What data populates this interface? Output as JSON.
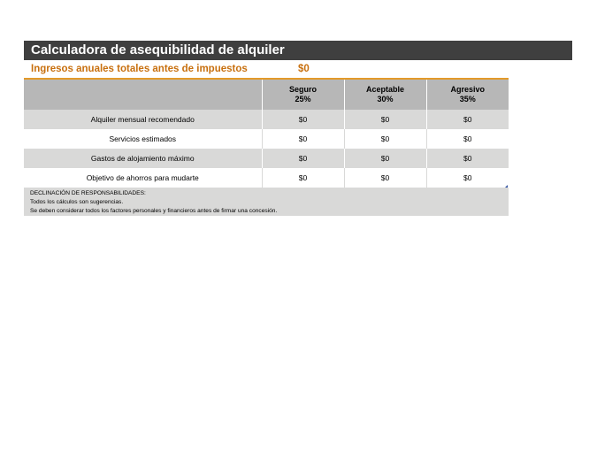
{
  "title": "Calculadora de asequibilidad de alquiler",
  "income": {
    "label": "Ingresos anuales totales antes de impuestos",
    "value": "$0"
  },
  "table": {
    "columns": [
      {
        "name": "Seguro",
        "percent": "25%"
      },
      {
        "name": "Aceptable",
        "percent": "30%"
      },
      {
        "name": "Agresivo",
        "percent": "35%"
      }
    ],
    "rows": [
      {
        "label": "Alquiler mensual recomendado",
        "values": [
          "$0",
          "$0",
          "$0"
        ]
      },
      {
        "label": "Servicios estimados",
        "values": [
          "$0",
          "$0",
          "$0"
        ]
      },
      {
        "label": "Gastos de alojamiento máximo",
        "values": [
          "$0",
          "$0",
          "$0"
        ]
      },
      {
        "label": "Objetivo de ahorros para mudarte",
        "values": [
          "$0",
          "$0",
          "$0"
        ]
      }
    ]
  },
  "disclaimer": {
    "heading": "DECLINACIÓN DE RESPONSABILIDADES:",
    "line1": "Todos los cálculos son sugerencias.",
    "line2": "Se deben considerar todos los factores personales y financieros antes de firmar una concesión."
  },
  "colors": {
    "title_bg": "#3f3f3f",
    "accent": "#c8700f",
    "header_bg": "#b7b7b7",
    "row_shade": "#d9d9d8"
  }
}
